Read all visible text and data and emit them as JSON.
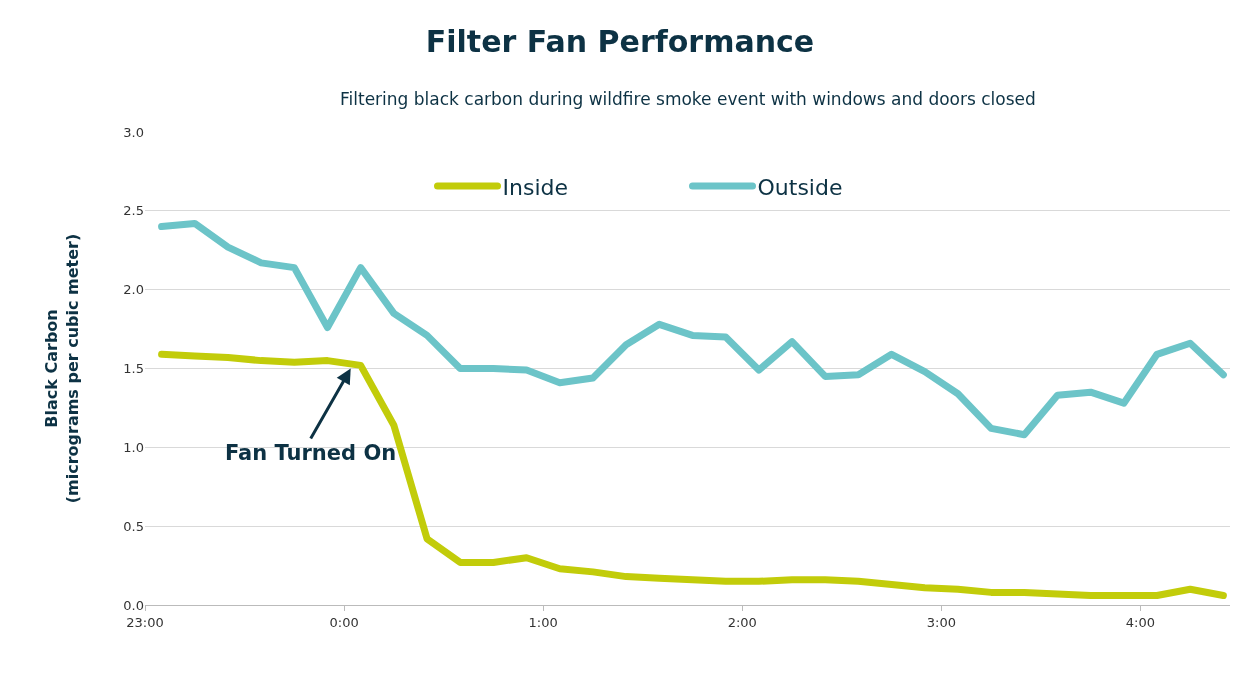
{
  "chart_data": {
    "type": "line",
    "title": "Filter Fan Performance",
    "subtitle": "Filtering black carbon during wildfire smoke event with windows and doors closed",
    "ylabel": "Black Carbon\n(micrograms per cubic meter)",
    "x": [
      "2000-01-01T23:05",
      "2000-01-01T23:15",
      "2000-01-01T23:25",
      "2000-01-01T23:35",
      "2000-01-01T23:45",
      "2000-01-01T23:55",
      "2000-01-02T00:05",
      "2000-01-02T00:15",
      "2000-01-02T00:25",
      "2000-01-02T00:35",
      "2000-01-02T00:45",
      "2000-01-02T00:55",
      "2000-01-02T01:05",
      "2000-01-02T01:15",
      "2000-01-02T01:25",
      "2000-01-02T01:35",
      "2000-01-02T01:45",
      "2000-01-02T01:55",
      "2000-01-02T02:05",
      "2000-01-02T02:15",
      "2000-01-02T02:25",
      "2000-01-02T02:35",
      "2000-01-02T02:45",
      "2000-01-02T02:55",
      "2000-01-02T03:05",
      "2000-01-02T03:15",
      "2000-01-02T03:25",
      "2000-01-02T03:35",
      "2000-01-02T03:45",
      "2000-01-02T03:55",
      "2000-01-02T04:05",
      "2000-01-02T04:15",
      "2000-01-02T04:25"
    ],
    "series": [
      {
        "name": "Inside",
        "color": "#c2cc0a",
        "values": [
          1.59,
          1.58,
          1.57,
          1.55,
          1.54,
          1.55,
          1.52,
          1.14,
          0.42,
          0.27,
          0.27,
          0.3,
          0.23,
          0.21,
          0.18,
          0.17,
          0.16,
          0.15,
          0.15,
          0.16,
          0.16,
          0.15,
          0.13,
          0.11,
          0.1,
          0.08,
          0.08,
          0.07,
          0.06,
          0.06,
          0.06,
          0.1,
          0.06
        ]
      },
      {
        "name": "Outside",
        "color": "#6cc4c8",
        "values": [
          2.4,
          2.42,
          2.27,
          2.17,
          2.14,
          1.76,
          2.14,
          1.85,
          1.71,
          1.5,
          1.5,
          1.49,
          1.41,
          1.44,
          1.65,
          1.78,
          1.71,
          1.7,
          1.49,
          1.67,
          1.45,
          1.46,
          1.59,
          1.48,
          1.34,
          1.12,
          1.08,
          1.33,
          1.35,
          1.28,
          1.59,
          1.66,
          1.46
        ]
      }
    ],
    "xlim": [
      "2000-01-01T23:00",
      "2000-01-02T04:27"
    ],
    "xticks": [
      {
        "value": "2000-01-01T23:00",
        "label": "23:00"
      },
      {
        "value": "2000-01-02T00:00",
        "label": "0:00"
      },
      {
        "value": "2000-01-02T01:00",
        "label": "1:00"
      },
      {
        "value": "2000-01-02T02:00",
        "label": "2:00"
      },
      {
        "value": "2000-01-02T03:00",
        "label": "3:00"
      },
      {
        "value": "2000-01-02T04:00",
        "label": "4:00"
      }
    ],
    "ylim": [
      0,
      3.0
    ],
    "yticks": [
      {
        "value": 0,
        "label": "0.0"
      },
      {
        "value": 0.5,
        "label": "0.5"
      },
      {
        "value": 1.0,
        "label": "1.0"
      },
      {
        "value": 1.5,
        "label": "1.5"
      },
      {
        "value": 2.0,
        "label": "2.0"
      },
      {
        "value": 2.5,
        "label": "2.5"
      },
      {
        "value": 3.0,
        "label": "3.0"
      }
    ],
    "annotations": [
      {
        "text": "Fan Turned On",
        "x": "2000-01-02T00:02",
        "y": 1.5
      }
    ],
    "grid": "y",
    "legend": "top",
    "marker": "none",
    "line_style": "solid"
  }
}
